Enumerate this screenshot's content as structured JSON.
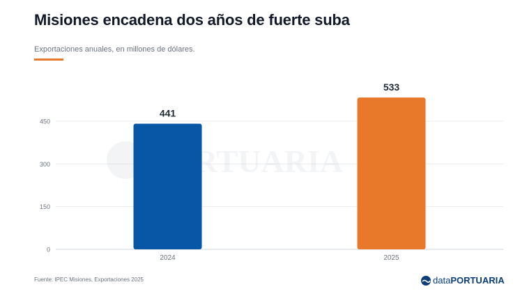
{
  "title": "Misiones encadena dos años de fuerte suba",
  "subtitle": "Exportaciones anuales, en millones de dólares.",
  "source": "Fuente: IPEC Misiones, Exportaciones 2025",
  "brand": {
    "prefix": "data",
    "name": "PORTUARIA",
    "icon": "ship-wave-icon"
  },
  "watermark": "PORTUARIA",
  "colors": {
    "accent": "#e8782a",
    "blue": "#0757a6",
    "orange": "#e8782a",
    "title": "#111827"
  },
  "chart_data": {
    "type": "bar",
    "categories": [
      "2024",
      "2025"
    ],
    "values": [
      441,
      533
    ],
    "bar_colors": [
      "#0757a6",
      "#e8782a"
    ],
    "data_labels": [
      "441",
      "533"
    ],
    "yticks": [
      0,
      150,
      300,
      450
    ],
    "ylim": [
      0,
      533
    ],
    "grid": true,
    "legend": "none"
  }
}
